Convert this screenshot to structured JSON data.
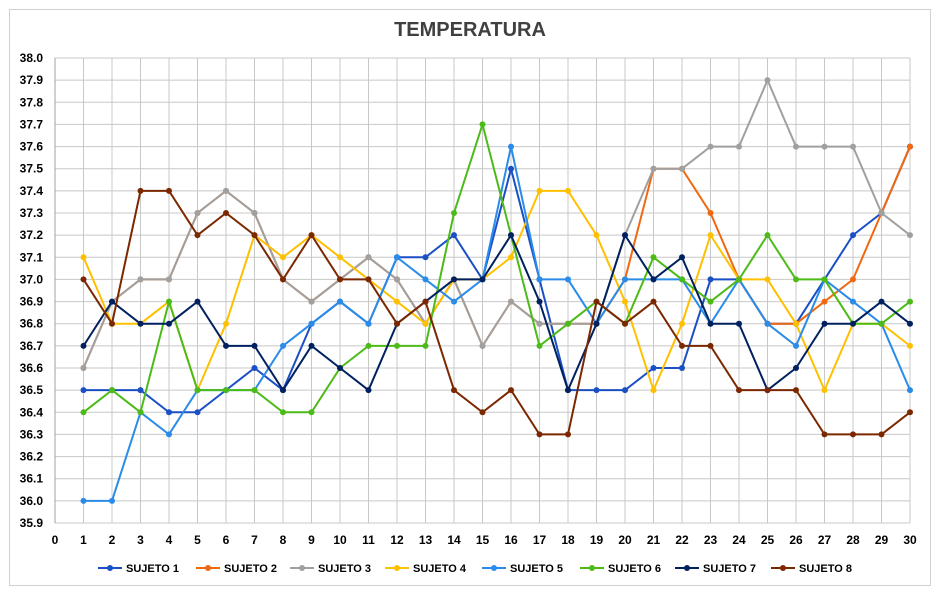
{
  "chart_data": {
    "type": "line",
    "title": "TEMPERATURA",
    "xlabel": "",
    "ylabel": "",
    "x": [
      1,
      2,
      3,
      4,
      5,
      6,
      7,
      8,
      9,
      10,
      11,
      12,
      13,
      14,
      15,
      16,
      17,
      18,
      19,
      20,
      21,
      22,
      23,
      24,
      25,
      26,
      27,
      28,
      29,
      30
    ],
    "xlim": [
      0,
      30
    ],
    "ylim": [
      35.9,
      38.0
    ],
    "y_step": 0.1,
    "grid": true,
    "legend_position": "bottom",
    "series": [
      {
        "name": "SUJETO 1",
        "color": "#1a4fc6",
        "values": [
          36.5,
          36.5,
          36.5,
          36.4,
          36.4,
          36.5,
          36.6,
          36.5,
          36.8,
          36.9,
          36.8,
          37.1,
          37.1,
          37.2,
          37.0,
          37.5,
          37.0,
          36.5,
          36.5,
          36.5,
          36.6,
          36.6,
          37.0,
          37.0,
          36.8,
          36.8,
          37.0,
          37.2,
          37.3,
          37.6
        ]
      },
      {
        "name": "SUJETO 2",
        "color": "#f0680f",
        "values": [
          36.6,
          36.9,
          37.0,
          37.0,
          37.3,
          37.4,
          37.3,
          37.0,
          36.9,
          37.0,
          37.1,
          37.0,
          36.8,
          37.0,
          36.7,
          36.9,
          36.8,
          36.8,
          36.8,
          37.0,
          37.5,
          37.5,
          37.3,
          37.0,
          36.8,
          36.8,
          36.9,
          37.0,
          37.3,
          37.6
        ]
      },
      {
        "name": "SUJETO 3",
        "color": "#a0a0a0",
        "values": [
          36.6,
          36.9,
          37.0,
          37.0,
          37.3,
          37.4,
          37.3,
          37.0,
          36.9,
          37.0,
          37.1,
          37.0,
          36.8,
          37.0,
          36.7,
          36.9,
          36.8,
          36.8,
          36.8,
          37.2,
          37.5,
          37.5,
          37.6,
          37.6,
          37.9,
          37.6,
          37.6,
          37.6,
          37.3,
          37.2
        ]
      },
      {
        "name": "SUJETO 4",
        "color": "#ffc000",
        "values": [
          37.1,
          36.8,
          36.8,
          36.9,
          36.5,
          36.8,
          37.2,
          37.1,
          37.2,
          37.1,
          37.0,
          36.9,
          36.8,
          37.0,
          37.0,
          37.1,
          37.4,
          37.4,
          37.2,
          36.9,
          36.5,
          36.8,
          37.2,
          37.0,
          37.0,
          36.8,
          36.5,
          36.8,
          36.8,
          36.7
        ]
      },
      {
        "name": "SUJETO 5",
        "color": "#2a8ce8",
        "values": [
          36.0,
          36.0,
          36.4,
          36.3,
          36.5,
          36.5,
          36.5,
          36.7,
          36.8,
          36.9,
          36.8,
          37.1,
          37.0,
          36.9,
          37.0,
          37.6,
          37.0,
          37.0,
          36.8,
          37.0,
          37.0,
          37.0,
          36.8,
          37.0,
          36.8,
          36.7,
          37.0,
          36.9,
          36.8,
          36.5
        ]
      },
      {
        "name": "SUJETO 6",
        "color": "#4cbb17",
        "values": [
          36.4,
          36.5,
          36.4,
          36.9,
          36.5,
          36.5,
          36.5,
          36.4,
          36.4,
          36.6,
          36.7,
          36.7,
          36.7,
          37.3,
          37.7,
          37.2,
          36.7,
          36.8,
          36.9,
          36.8,
          37.1,
          37.0,
          36.9,
          37.0,
          37.2,
          37.0,
          37.0,
          36.8,
          36.8,
          36.9
        ]
      },
      {
        "name": "SUJETO 7",
        "color": "#002060",
        "values": [
          36.7,
          36.9,
          36.8,
          36.8,
          36.9,
          36.7,
          36.7,
          36.5,
          36.7,
          36.6,
          36.5,
          36.8,
          36.9,
          37.0,
          37.0,
          37.2,
          36.9,
          36.5,
          36.8,
          37.2,
          37.0,
          37.1,
          36.8,
          36.8,
          36.5,
          36.6,
          36.8,
          36.8,
          36.9,
          36.8
        ]
      },
      {
        "name": "SUJETO 8",
        "color": "#7b2800",
        "values": [
          37.0,
          36.8,
          37.4,
          37.4,
          37.2,
          37.3,
          37.2,
          37.0,
          37.2,
          37.0,
          37.0,
          36.8,
          36.9,
          36.5,
          36.4,
          36.5,
          36.3,
          36.3,
          36.9,
          36.8,
          36.9,
          36.7,
          36.7,
          36.5,
          36.5,
          36.5,
          36.3,
          36.3,
          36.3,
          36.4
        ]
      }
    ]
  }
}
